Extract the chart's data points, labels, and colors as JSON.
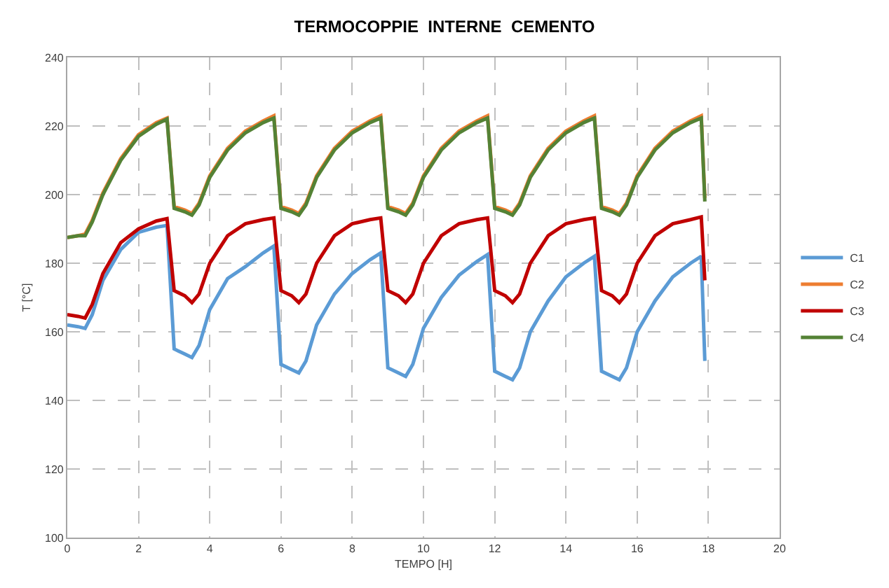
{
  "chart_data": {
    "type": "line",
    "title": "TERMOCOPPIE  INTERNE  CEMENTO",
    "xlabel": "TEMPO [H]",
    "ylabel": "T [°C]",
    "x": [
      0,
      0.3,
      0.5,
      0.7,
      1,
      1.5,
      2,
      2.5,
      2.8,
      3,
      3.3,
      3.5,
      3.7,
      4,
      4.5,
      5,
      5.5,
      5.8,
      6,
      6.3,
      6.5,
      6.7,
      7,
      7.5,
      8,
      8.5,
      8.8,
      9,
      9.3,
      9.5,
      9.7,
      10,
      10.5,
      11,
      11.5,
      11.8,
      12,
      12.3,
      12.5,
      12.7,
      13,
      13.5,
      14,
      14.5,
      14.8,
      15,
      15.3,
      15.5,
      15.7,
      16,
      16.5,
      17,
      17.5,
      17.8,
      17.9
    ],
    "series": [
      {
        "name": "C1",
        "color": "#5b9bd5",
        "values": [
          162,
          161.5,
          161,
          165,
          175,
          184,
          189,
          190.5,
          191,
          155,
          153.5,
          152.5,
          156,
          166.5,
          175.5,
          179,
          183,
          185,
          150.5,
          149,
          148,
          151.5,
          162,
          171,
          177,
          181,
          183,
          149.5,
          148,
          147,
          150.5,
          161,
          170,
          176.5,
          180.5,
          182.5,
          148.5,
          147,
          146,
          149.5,
          160,
          169,
          176,
          180,
          182,
          148.5,
          147,
          146,
          149.5,
          160,
          169,
          176,
          180,
          182,
          151.5
        ]
      },
      {
        "name": "C2",
        "color": "#ed7d31",
        "values": [
          187.5,
          188,
          188.5,
          192.5,
          200.5,
          210.5,
          217.5,
          221,
          222.3,
          196.5,
          195.5,
          194.5,
          197.5,
          205.5,
          213.5,
          218.5,
          221.5,
          223,
          196.5,
          195.5,
          194.5,
          197.5,
          205.5,
          213.5,
          218.5,
          221.5,
          223,
          196.5,
          195.5,
          194.5,
          197.5,
          205.5,
          213.5,
          218.5,
          221.5,
          223,
          196.5,
          195.5,
          194.5,
          197.5,
          205.5,
          213.5,
          218.5,
          221.5,
          223,
          196.5,
          195.5,
          194.5,
          197.5,
          205.5,
          213.5,
          218.5,
          221.5,
          223,
          199
        ]
      },
      {
        "name": "C3",
        "color": "#c00000",
        "values": [
          165,
          164.5,
          164,
          168,
          177,
          186,
          190,
          192.3,
          193,
          172,
          170.5,
          168.5,
          171,
          180,
          188,
          191.5,
          192.7,
          193.2,
          172,
          170.5,
          168.5,
          171,
          180,
          188,
          191.5,
          192.7,
          193.2,
          172,
          170.5,
          168.5,
          171,
          180,
          188,
          191.5,
          192.7,
          193.2,
          172,
          170.5,
          168.5,
          171,
          180,
          188,
          191.5,
          192.7,
          193.2,
          172,
          170.5,
          168.5,
          171,
          180,
          188,
          191.5,
          192.7,
          193.5,
          175
        ]
      },
      {
        "name": "C4",
        "color": "#548235",
        "values": [
          187.5,
          188,
          188,
          192,
          200,
          210,
          217,
          220.5,
          222,
          196,
          195,
          194,
          197,
          205,
          213,
          218,
          221,
          222.3,
          196,
          195,
          194,
          197,
          205,
          213,
          218,
          221,
          222.3,
          196,
          195,
          194,
          197,
          205,
          213,
          218,
          221,
          222.3,
          196,
          195,
          194,
          197,
          205,
          213,
          218,
          221,
          222.3,
          196,
          195,
          194,
          197,
          205,
          213,
          218,
          221,
          222.3,
          198
        ]
      }
    ],
    "xlim": [
      0,
      20
    ],
    "xticks": [
      0,
      2,
      4,
      6,
      8,
      10,
      12,
      14,
      16,
      18,
      20
    ],
    "ylim": [
      100,
      240
    ],
    "yticks": [
      100,
      120,
      140,
      160,
      180,
      200,
      220,
      240
    ],
    "grid": true,
    "legend": "right",
    "marker": "none",
    "line_style": "solid"
  }
}
